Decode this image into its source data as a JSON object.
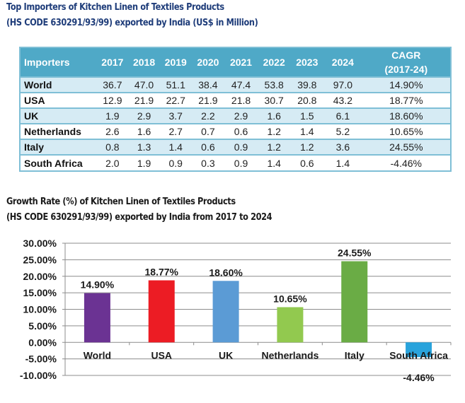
{
  "table_section": {
    "title_line1": "Top Importers of Kitchen Linen of Textiles Products",
    "title_line2": "(HS CODE 630291/93/99) exported by India (US$ in Million)",
    "headers": [
      "Importers",
      "2017",
      "2018",
      "2019",
      "2020",
      "2021",
      "2022",
      "2023",
      "2024",
      "CAGR",
      "(2017-24)"
    ],
    "rows": [
      {
        "name": "World",
        "values": [
          "36.7",
          "47.0",
          "51.1",
          "38.4",
          "47.4",
          "53.8",
          "39.8",
          "97.0"
        ],
        "cagr": "14.90%"
      },
      {
        "name": "USA",
        "values": [
          "12.9",
          "21.9",
          "22.7",
          "21.9",
          "21.8",
          "30.7",
          "20.8",
          "43.2"
        ],
        "cagr": "18.77%"
      },
      {
        "name": "UK",
        "values": [
          "1.9",
          "2.9",
          "3.7",
          "2.2",
          "2.9",
          "1.6",
          "1.5",
          "6.1"
        ],
        "cagr": "18.60%"
      },
      {
        "name": "Netherlands",
        "values": [
          "2.6",
          "1.6",
          "2.7",
          "0.7",
          "0.6",
          "1.2",
          "1.4",
          "5.2"
        ],
        "cagr": "10.65%"
      },
      {
        "name": "Italy",
        "values": [
          "0.8",
          "1.3",
          "1.4",
          "0.6",
          "0.9",
          "1.2",
          "1.2",
          "3.6"
        ],
        "cagr": "24.55%"
      },
      {
        "name": "South Africa",
        "values": [
          "2.0",
          "1.9",
          "0.9",
          "0.3",
          "0.9",
          "1.4",
          "0.6",
          "1.4"
        ],
        "cagr": "-4.46%"
      }
    ]
  },
  "chart_section": {
    "title_line1": "Growth Rate (%) of Kitchen Linen of Textiles Products",
    "title_line2": "(HS CODE 630291/93/99) exported by India from 2017 to 2024"
  },
  "chart_data": {
    "type": "bar",
    "title": "Growth Rate (%) of Kitchen Linen of Textiles Products (HS CODE 630291/93/99) exported by India from 2017 to 2024",
    "categories": [
      "World",
      "USA",
      "UK",
      "Netherlands",
      "Italy",
      "South Africa"
    ],
    "values": [
      14.9,
      18.77,
      18.6,
      10.65,
      24.55,
      -4.46
    ],
    "data_labels": [
      "14.90%",
      "18.77%",
      "18.60%",
      "10.65%",
      "24.55%",
      "-4.46%"
    ],
    "colors": [
      "#6b3393",
      "#ec1c24",
      "#5b9bd5",
      "#92c94f",
      "#6aac45",
      "#29a3dc"
    ],
    "xlabel": "",
    "ylabel": "",
    "ylim": [
      -10,
      30
    ],
    "yticks": [
      30,
      25,
      20,
      15,
      10,
      5,
      0,
      -5,
      -10
    ],
    "ytick_labels": [
      "30.00%",
      "25.00%",
      "20.00%",
      "15.00%",
      "10.00%",
      "5.00%",
      "0.00%",
      "-5.00%",
      "-10.00%"
    ],
    "grid": true,
    "legend": "none"
  }
}
